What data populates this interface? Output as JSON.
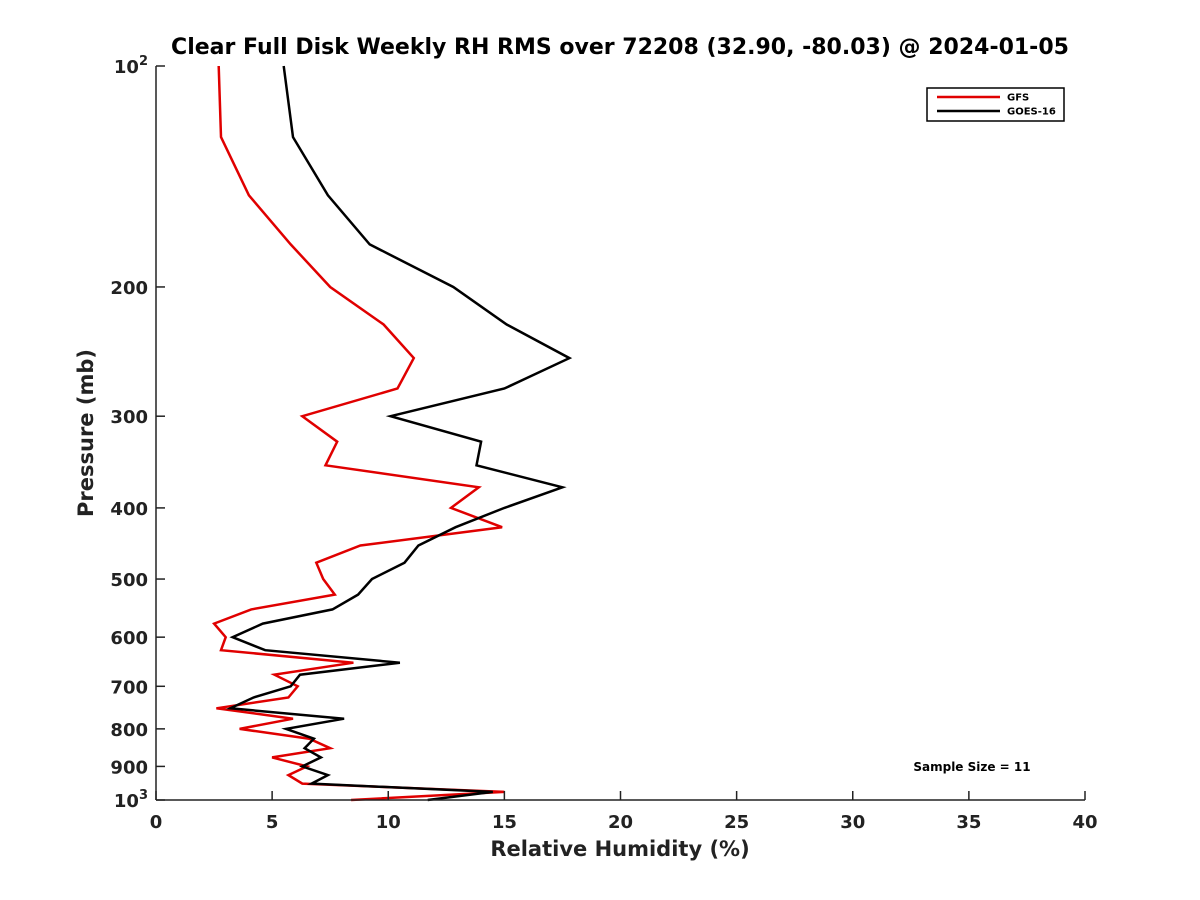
{
  "chart_data": {
    "type": "line",
    "title": "Clear Full Disk Weekly RH RMS over 72208 (32.90, -80.03) @ 2024-01-05",
    "xlabel": "Relative Humidity (%)",
    "ylabel": "Pressure (mb)",
    "xlim": [
      0,
      40
    ],
    "ylim": [
      100,
      1000
    ],
    "yscale": "log",
    "y_reversed": true,
    "grid": false,
    "legend_position": "top-right",
    "x_ticks": [
      "0",
      "5",
      "10",
      "15",
      "20",
      "25",
      "30",
      "35",
      "40"
    ],
    "y_ticks": [
      {
        "value": 100,
        "base": "10",
        "exp": "2"
      },
      {
        "value": 200,
        "label": "200"
      },
      {
        "value": 300,
        "label": "300"
      },
      {
        "value": 400,
        "label": "400"
      },
      {
        "value": 500,
        "label": "500"
      },
      {
        "value": 600,
        "label": "600"
      },
      {
        "value": 700,
        "label": "700"
      },
      {
        "value": 800,
        "label": "800"
      },
      {
        "value": 900,
        "label": "900"
      },
      {
        "value": 1000,
        "base": "10",
        "exp": "3"
      }
    ],
    "series": [
      {
        "name": "GFS",
        "color": "#e00000",
        "points": [
          [
            2.7,
            100
          ],
          [
            2.8,
            125
          ],
          [
            4.0,
            150
          ],
          [
            5.8,
            175
          ],
          [
            7.5,
            200
          ],
          [
            9.8,
            225
          ],
          [
            11.1,
            250
          ],
          [
            10.4,
            275
          ],
          [
            6.3,
            300
          ],
          [
            7.8,
            325
          ],
          [
            7.3,
            350
          ],
          [
            13.9,
            375
          ],
          [
            12.7,
            400
          ],
          [
            14.9,
            425
          ],
          [
            8.8,
            450
          ],
          [
            6.9,
            475
          ],
          [
            7.2,
            500
          ],
          [
            7.7,
            525
          ],
          [
            4.1,
            550
          ],
          [
            2.5,
            575
          ],
          [
            3.0,
            600
          ],
          [
            2.8,
            625
          ],
          [
            8.5,
            650
          ],
          [
            5.1,
            675
          ],
          [
            6.1,
            700
          ],
          [
            5.7,
            725
          ],
          [
            2.6,
            750
          ],
          [
            5.9,
            775
          ],
          [
            3.6,
            800
          ],
          [
            6.6,
            825
          ],
          [
            7.5,
            850
          ],
          [
            5.0,
            875
          ],
          [
            6.5,
            900
          ],
          [
            5.7,
            925
          ],
          [
            6.3,
            950
          ],
          [
            15.0,
            975
          ],
          [
            8.4,
            1000
          ]
        ]
      },
      {
        "name": "GOES-16",
        "color": "#000000",
        "points": [
          [
            5.5,
            100
          ],
          [
            5.9,
            125
          ],
          [
            7.4,
            150
          ],
          [
            9.2,
            175
          ],
          [
            12.8,
            200
          ],
          [
            15.1,
            225
          ],
          [
            17.8,
            250
          ],
          [
            15.0,
            275
          ],
          [
            10.1,
            300
          ],
          [
            14.0,
            325
          ],
          [
            13.8,
            350
          ],
          [
            17.5,
            375
          ],
          [
            15.0,
            400
          ],
          [
            12.9,
            425
          ],
          [
            11.3,
            450
          ],
          [
            10.7,
            475
          ],
          [
            9.3,
            500
          ],
          [
            8.7,
            525
          ],
          [
            7.6,
            550
          ],
          [
            4.6,
            575
          ],
          [
            3.3,
            600
          ],
          [
            4.7,
            625
          ],
          [
            10.5,
            650
          ],
          [
            6.2,
            675
          ],
          [
            5.8,
            700
          ],
          [
            4.2,
            725
          ],
          [
            3.2,
            750
          ],
          [
            8.1,
            775
          ],
          [
            5.6,
            800
          ],
          [
            6.8,
            825
          ],
          [
            6.4,
            850
          ],
          [
            7.1,
            875
          ],
          [
            6.3,
            900
          ],
          [
            7.4,
            925
          ],
          [
            6.7,
            950
          ],
          [
            14.5,
            975
          ],
          [
            11.7,
            1000
          ]
        ]
      }
    ],
    "annotations": [
      "Sample Size = 11"
    ]
  }
}
